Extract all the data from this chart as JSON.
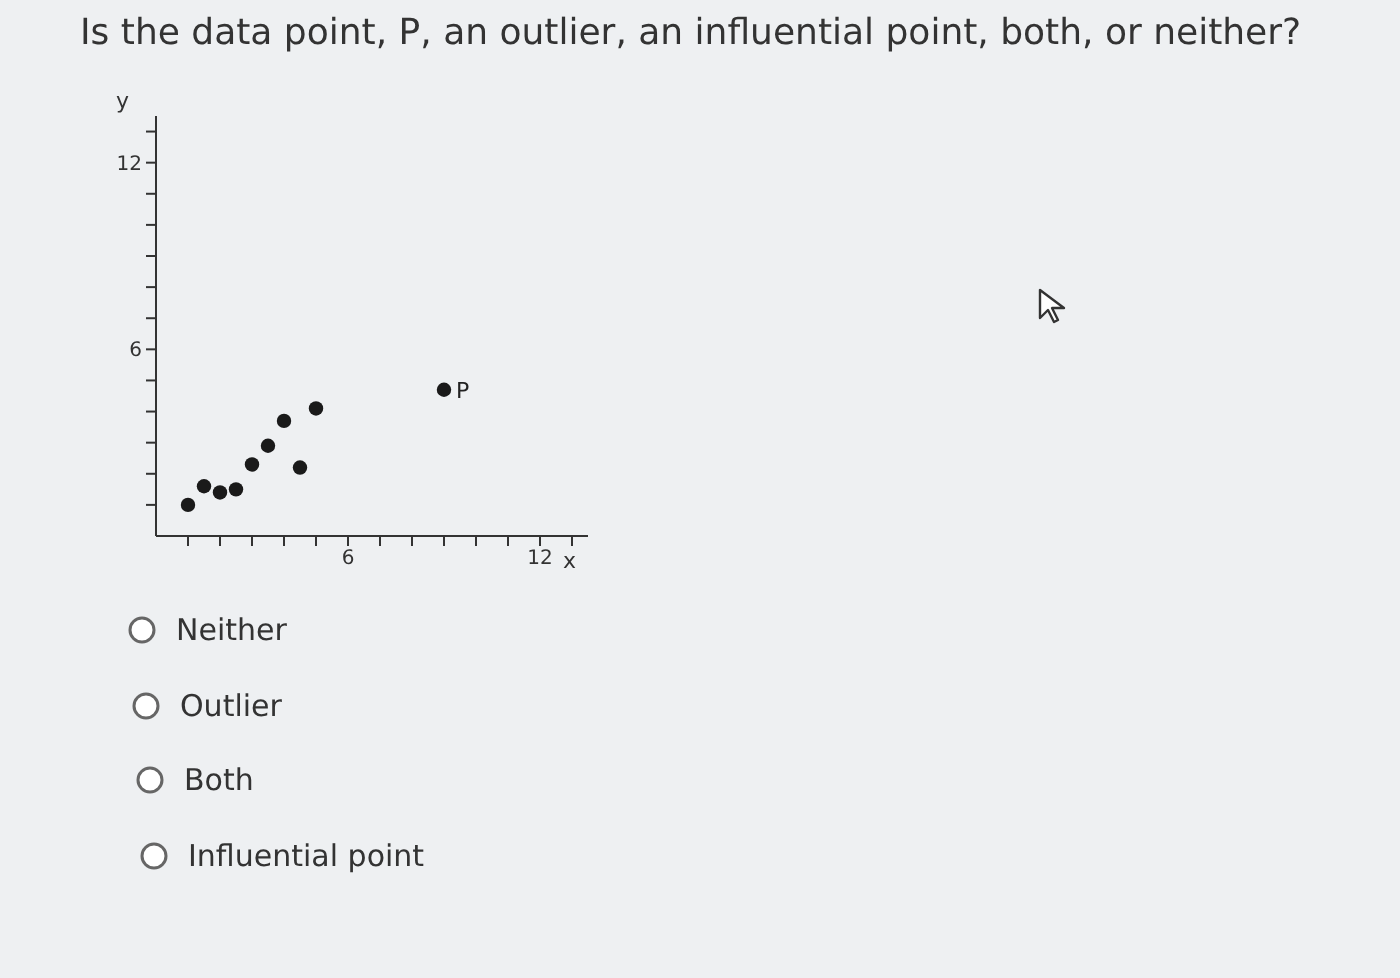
{
  "chart_data": {
    "type": "scatter",
    "title": "Is the data point, P, an outlier, an influential point, both, or neither?",
    "xlabel": "x",
    "ylabel": "y",
    "x": [
      1,
      1.5,
      2,
      2.5,
      3,
      3.5,
      4,
      4.5,
      5,
      9
    ],
    "values": [
      1,
      1.6,
      1.4,
      1.5,
      2.3,
      2.9,
      3.7,
      2.2,
      4.1,
      4.7
    ],
    "color": "#1a1a1a",
    "marker": "circle",
    "grid": false,
    "legend": false,
    "xlim": [
      0,
      13.5
    ],
    "ylim": [
      0,
      13.5
    ],
    "xticks": [
      {
        "value": 1,
        "label": null
      },
      {
        "value": 2,
        "label": null
      },
      {
        "value": 3,
        "label": null
      },
      {
        "value": 4,
        "label": null
      },
      {
        "value": 5,
        "label": null
      },
      6,
      {
        "value": 7,
        "label": null
      },
      {
        "value": 8,
        "label": null
      },
      {
        "value": 9,
        "label": null
      },
      {
        "value": 10,
        "label": null
      },
      {
        "value": 11,
        "label": null
      },
      12,
      {
        "value": 13,
        "label": null
      }
    ],
    "yticks": [
      {
        "value": 1,
        "label": null
      },
      {
        "value": 2,
        "label": null
      },
      {
        "value": 3,
        "label": null
      },
      {
        "value": 4,
        "label": null
      },
      {
        "value": 5,
        "label": null
      },
      6,
      {
        "value": 7,
        "label": null
      },
      {
        "value": 8,
        "label": null
      },
      {
        "value": 9,
        "label": null
      },
      {
        "value": 10,
        "label": null
      },
      {
        "value": 11,
        "label": null
      },
      12,
      {
        "value": 13,
        "label": null
      }
    ],
    "annotations": [
      {
        "text": "P",
        "x": 9,
        "y": 4.7
      },
      "Neither",
      "Outlier",
      "Both",
      "Influential point"
    ]
  }
}
